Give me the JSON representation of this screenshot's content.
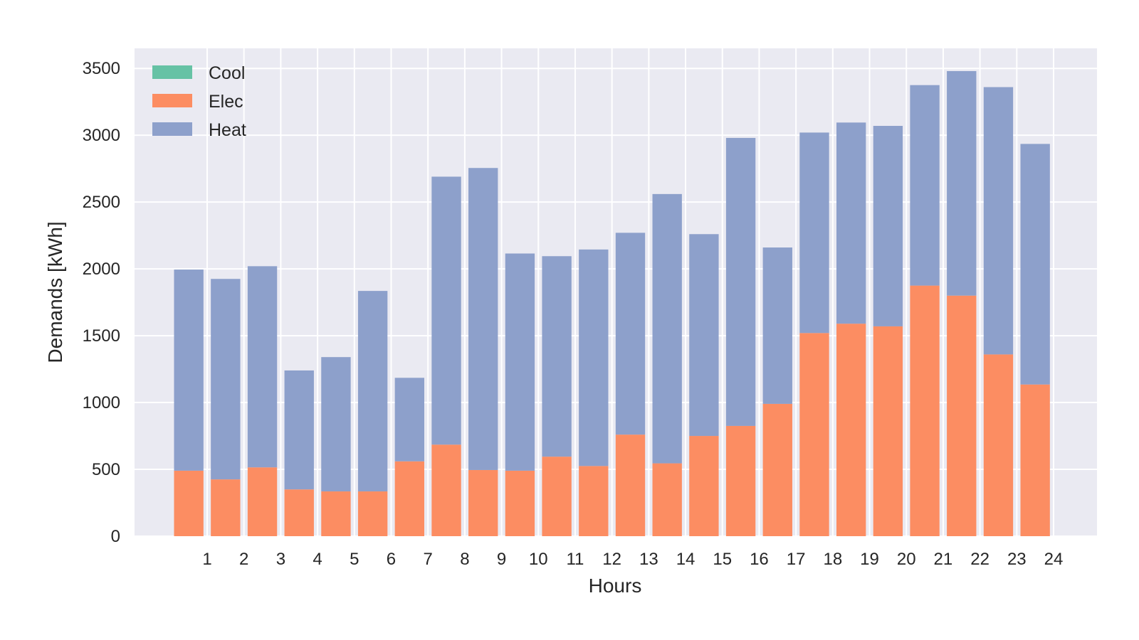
{
  "chart_data": {
    "type": "bar",
    "stacked": true,
    "categories": [
      "1",
      "2",
      "3",
      "4",
      "5",
      "6",
      "7",
      "8",
      "9",
      "10",
      "11",
      "12",
      "13",
      "14",
      "15",
      "16",
      "17",
      "18",
      "19",
      "20",
      "21",
      "22",
      "23",
      "24"
    ],
    "series": [
      {
        "name": "Cool",
        "color": "#66c2a5",
        "values": [
          0,
          0,
          0,
          0,
          0,
          0,
          0,
          0,
          0,
          0,
          0,
          0,
          0,
          0,
          0,
          0,
          0,
          0,
          0,
          0,
          0,
          0,
          0,
          0
        ]
      },
      {
        "name": "Elec",
        "color": "#fc8d62",
        "values": [
          490,
          425,
          515,
          350,
          335,
          335,
          560,
          685,
          495,
          490,
          595,
          525,
          760,
          545,
          750,
          825,
          990,
          1520,
          1590,
          1570,
          1875,
          1800,
          1360,
          1135
        ]
      },
      {
        "name": "Heat",
        "color": "#8da0cb",
        "values": [
          1505,
          1500,
          1505,
          890,
          1005,
          1500,
          625,
          2005,
          2260,
          1625,
          1500,
          1620,
          1510,
          2015,
          1510,
          2155,
          1170,
          1500,
          1505,
          1500,
          1500,
          1680,
          2000,
          1800
        ]
      }
    ],
    "xlabel": "Hours",
    "ylabel": "Demands [kWh]",
    "ylim": [
      0,
      3650
    ],
    "yticks": [
      0,
      500,
      1000,
      1500,
      2000,
      2500,
      3000,
      3500
    ],
    "grid": true,
    "legend_position": "top-left",
    "colors": {
      "plot_background": "#eaeaf2",
      "grid": "#ffffff",
      "text": "#262626"
    }
  }
}
